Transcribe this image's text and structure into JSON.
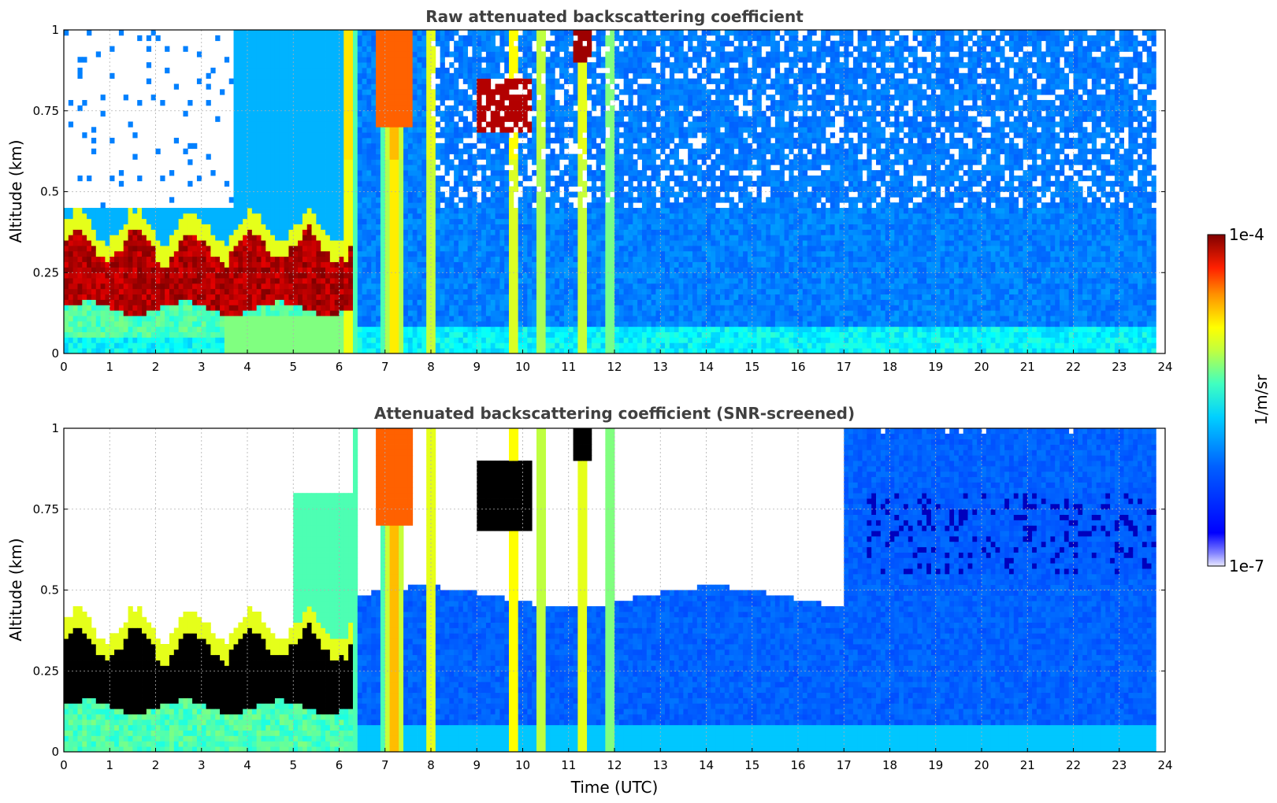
{
  "figure": {
    "colorbar": {
      "label": "1/m/sr",
      "max_label": "1e-4",
      "min_label": "1e-7",
      "scale": "log",
      "range": [
        1e-07,
        0.0001
      ],
      "colormap": "jet"
    }
  },
  "chart_data": [
    {
      "type": "heatmap",
      "title": "Raw attenuated backscattering coefficient",
      "xlabel": "",
      "ylabel": "Altitude (km)",
      "xlim": [
        0,
        24
      ],
      "ylim": [
        0,
        1
      ],
      "xticks": [
        "0",
        "1",
        "2",
        "3",
        "4",
        "5",
        "6",
        "7",
        "8",
        "9",
        "10",
        "11",
        "12",
        "13",
        "14",
        "15",
        "16",
        "17",
        "18",
        "19",
        "20",
        "21",
        "22",
        "23",
        "24"
      ],
      "yticks": [
        "0",
        "0.25",
        "0.5",
        "0.75",
        "1"
      ],
      "grid": true,
      "data_end_time": 23.8,
      "features": [
        {
          "name": "low layer",
          "t_start": 0.0,
          "t_end": 6.3,
          "alt_base": 0.12,
          "alt_top": 0.4,
          "level": "1e-4"
        },
        {
          "name": "rain shafts",
          "t_start": 6.0,
          "t_end": 12.0,
          "alt_base": 0.0,
          "alt_top": 1.0,
          "level": "3e-5"
        },
        {
          "name": "cloud aloft",
          "t_start": 9.0,
          "t_end": 12.0,
          "alt_base": 0.65,
          "alt_top": 1.0,
          "level": "1e-4"
        },
        {
          "name": "clear air",
          "t_start": 8.0,
          "t_end": 23.8,
          "alt_base": 0.0,
          "alt_top": 1.0,
          "level": "1e-6"
        }
      ]
    },
    {
      "type": "heatmap",
      "title": "Attenuated backscattering coefficient (SNR-screened)",
      "xlabel": "Time (UTC)",
      "ylabel": "Altitude (km)",
      "xlim": [
        0,
        24
      ],
      "ylim": [
        0,
        1
      ],
      "xticks": [
        "0",
        "1",
        "2",
        "3",
        "4",
        "5",
        "6",
        "7",
        "8",
        "9",
        "10",
        "11",
        "12",
        "13",
        "14",
        "15",
        "16",
        "17",
        "18",
        "19",
        "20",
        "21",
        "22",
        "23",
        "24"
      ],
      "yticks": [
        "0",
        "0.25",
        "0.5",
        "0.75",
        "1"
      ],
      "grid": true,
      "data_end_time": 23.8,
      "features": [
        {
          "name": "low layer (saturated)",
          "t_start": 0.0,
          "t_end": 6.3,
          "alt_base": 0.12,
          "alt_top": 0.4,
          "level": "saturated"
        },
        {
          "name": "rain shafts",
          "t_start": 6.0,
          "t_end": 12.0,
          "alt_base": 0.0,
          "alt_top": 1.0,
          "level": "3e-5"
        },
        {
          "name": "screened boundary layer",
          "t_start": 7.6,
          "t_end": 23.8,
          "alt_base": 0.0,
          "alt_top": 0.55,
          "level": "1e-6"
        },
        {
          "name": "noisy retained aloft",
          "t_start": 17.0,
          "t_end": 23.8,
          "alt_base": 0.5,
          "alt_top": 1.0,
          "level": "1e-6"
        }
      ]
    }
  ]
}
